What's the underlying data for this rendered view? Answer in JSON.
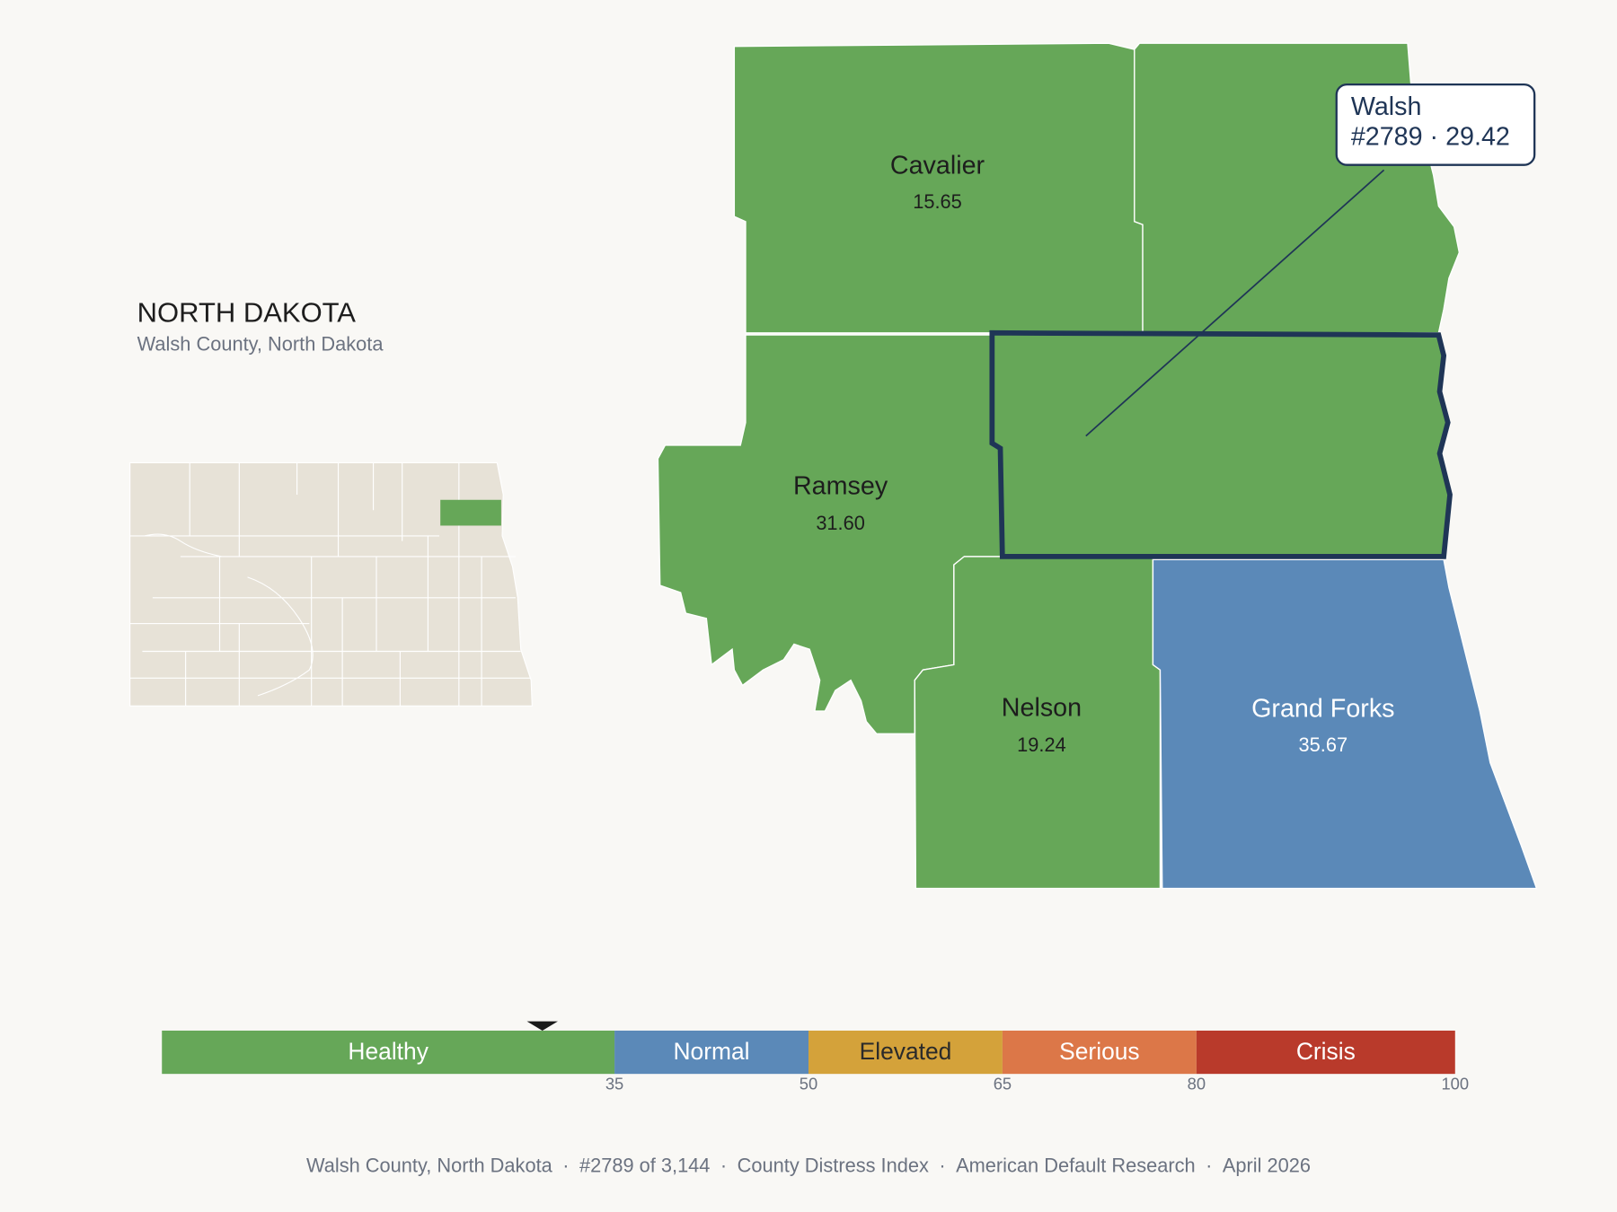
{
  "header": {
    "title": "NORTH DAKOTA",
    "subtitle": "Walsh County, North Dakota"
  },
  "map": {
    "counties": [
      {
        "name": "Cavalier",
        "value": 15.65,
        "label": "15.65"
      },
      {
        "name": "Ramsey",
        "value": 31.6,
        "label": "31.60"
      },
      {
        "name": "Nelson",
        "value": 19.24,
        "label": "19.24"
      },
      {
        "name": "Grand Forks",
        "value": 35.67,
        "label": "35.67"
      }
    ],
    "selected": {
      "value": 29.42,
      "tooltip": [
        "Walsh",
        "#2789 · 29.42"
      ]
    }
  },
  "legend": {
    "xlim": [
      0,
      100
    ],
    "bands": [
      {
        "name": "Healthy",
        "color": "#66a758"
      },
      {
        "name": "Normal",
        "color": "#5b89b8"
      },
      {
        "name": "Elevated",
        "color": "#d4a23a"
      },
      {
        "name": "Serious",
        "color": "#dc7748"
      },
      {
        "name": "Crisis",
        "color": "#b93a2b"
      }
    ],
    "ticks": [
      35,
      50,
      65,
      80,
      100
    ]
  },
  "footer": {
    "parts": [
      "Walsh County, North Dakota",
      "#2789 of 3,144",
      "County Distress Index",
      "American Default Research",
      "April 2026"
    ],
    "separator": "·"
  }
}
